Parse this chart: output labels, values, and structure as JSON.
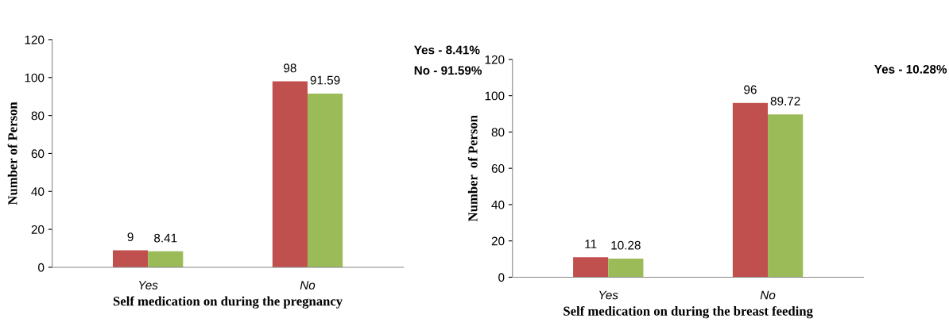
{
  "chart_data": [
    {
      "type": "bar",
      "xlabel": "Self medication on during the pregnancy",
      "ylabel": "Number of Person",
      "categories": [
        "Yes",
        "No"
      ],
      "series": [
        {
          "color": "#c0504d",
          "values": [
            9,
            98
          ]
        },
        {
          "color": "#9bbb59",
          "values": [
            8.41,
            91.59
          ]
        }
      ],
      "ylim": [
        0,
        120
      ],
      "yticks": [
        0,
        20,
        40,
        60,
        80,
        100,
        120
      ],
      "data_labels": true,
      "grid": false,
      "legend": false,
      "annotations": [
        "Yes - 8.41%",
        "No - 91.59%"
      ]
    },
    {
      "type": "bar",
      "xlabel": "Self medication on during the breast feeding",
      "ylabel": "Number  of Person",
      "categories": [
        "Yes",
        "No"
      ],
      "series": [
        {
          "color": "#c0504d",
          "values": [
            11,
            96
          ]
        },
        {
          "color": "#9bbb59",
          "values": [
            10.28,
            89.72
          ]
        }
      ],
      "ylim": [
        0,
        120
      ],
      "yticks": [
        0,
        20,
        40,
        60,
        80,
        100,
        120
      ],
      "data_labels": true,
      "grid": false,
      "legend": false,
      "annotations": [
        "Yes - 10.28%"
      ]
    }
  ]
}
